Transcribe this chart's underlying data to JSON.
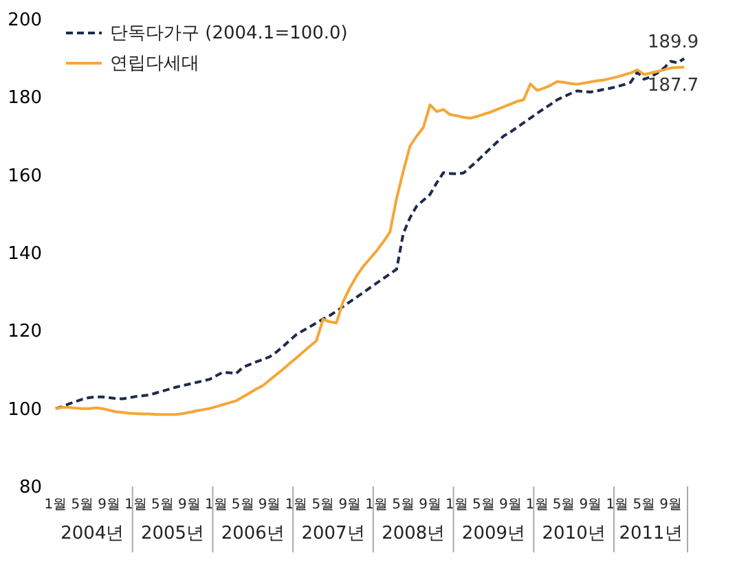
{
  "chart_data": {
    "type": "line",
    "categories": [
      "1월",
      null,
      null,
      null,
      "5월",
      null,
      null,
      null,
      "9월",
      null,
      null,
      null,
      "1월",
      null,
      null,
      null,
      "5월",
      null,
      null,
      null,
      "9월",
      null,
      null,
      null,
      "1월",
      null,
      null,
      null,
      "5월",
      null,
      null,
      null,
      "9월",
      null,
      null,
      null,
      "1월",
      null,
      null,
      null,
      "5월",
      null,
      null,
      null,
      "9월",
      null,
      null,
      null,
      "1월",
      null,
      null,
      null,
      "5월",
      null,
      null,
      null,
      "9월",
      null,
      null,
      null,
      "1월",
      null,
      null,
      null,
      "5월",
      null,
      null,
      null,
      "9월",
      null,
      null,
      null,
      "1월",
      null,
      null,
      null,
      "5월",
      null,
      null,
      null,
      "9월",
      null,
      null,
      null,
      "1월",
      null,
      null,
      null,
      "5월",
      null,
      null,
      null,
      "9월",
      null,
      null
    ],
    "series": [
      {
        "name": "단독다가구 (2004.1=100.0)",
        "color": "#1f2a4d",
        "line_style": "dashed",
        "values": [
          100,
          100.5,
          101.2,
          101.8,
          102.4,
          102.8,
          103,
          103,
          102.8,
          102.6,
          102.5,
          102.8,
          103.1,
          103.3,
          103.5,
          104,
          104.5,
          105,
          105.5,
          105.9,
          106.3,
          106.7,
          107.1,
          107.5,
          108.4,
          109.3,
          109.2,
          109,
          110.6,
          111.3,
          112,
          112.6,
          113.3,
          114.5,
          115.9,
          117.5,
          119,
          120,
          121,
          122,
          123,
          123.9,
          125,
          126.2,
          127.4,
          128.6,
          129.8,
          131,
          132.2,
          133.4,
          134.6,
          135.8,
          145,
          149,
          152,
          153.5,
          155,
          158,
          160.6,
          160.4,
          160.3,
          160.5,
          162,
          163.5,
          165.2,
          166.8,
          168.4,
          170,
          171,
          172.2,
          173.4,
          174.6,
          175.8,
          177,
          178.1,
          179.3,
          180.1,
          180.9,
          181.6,
          181.4,
          181.3,
          181.6,
          182,
          182.3,
          182.7,
          183.2,
          183.8,
          186.4,
          184.6,
          185.2,
          186.2,
          187.5,
          189.2,
          188.8,
          189.9
        ],
        "value_labels": [
          null,
          null,
          null,
          null,
          null,
          null,
          null,
          null,
          null,
          null,
          null,
          null,
          null,
          null,
          null,
          null,
          null,
          null,
          null,
          null,
          null,
          null,
          null,
          null,
          null,
          null,
          null,
          null,
          null,
          null,
          null,
          null,
          null,
          null,
          null,
          null,
          null,
          null,
          null,
          null,
          null,
          null,
          null,
          null,
          null,
          null,
          null,
          null,
          null,
          null,
          null,
          null,
          null,
          null,
          null,
          null,
          null,
          null,
          null,
          null,
          null,
          null,
          null,
          null,
          null,
          null,
          null,
          null,
          null,
          null,
          null,
          null,
          null,
          null,
          null,
          null,
          null,
          null,
          null,
          null,
          null,
          null,
          null,
          null,
          null,
          null,
          null,
          null,
          null,
          null,
          null,
          null,
          null,
          null,
          "189.9"
        ]
      },
      {
        "name": "연립다세대",
        "color": "#f5a638",
        "line_style": "solid",
        "values": [
          100,
          100.3,
          100.3,
          100.1,
          100,
          100,
          100.2,
          100,
          99.6,
          99.2,
          99,
          98.8,
          98.7,
          98.6,
          98.6,
          98.5,
          98.5,
          98.5,
          98.5,
          98.7,
          99,
          99.4,
          99.7,
          100,
          100.5,
          101,
          101.5,
          102,
          103,
          104,
          105,
          105.9,
          107.3,
          108.7,
          110.1,
          111.6,
          113,
          114.5,
          116,
          117.4,
          122.9,
          122.3,
          122,
          127.5,
          131,
          134,
          136.5,
          138.5,
          140.5,
          142.8,
          145.3,
          154,
          161,
          167.4,
          170,
          172.2,
          178,
          176.3,
          176.8,
          175.5,
          175.2,
          174.8,
          174.6,
          175,
          175.6,
          176.1,
          176.8,
          177.5,
          178.2,
          178.9,
          179.3,
          183.4,
          181.7,
          182.3,
          183,
          184,
          183.8,
          183.5,
          183.3,
          183.6,
          183.9,
          184.2,
          184.4,
          184.8,
          185.2,
          185.7,
          186.2,
          187,
          185.8,
          186.2,
          186.6,
          187,
          187.5,
          187.6,
          187.7
        ],
        "value_labels": [
          null,
          null,
          null,
          null,
          null,
          null,
          null,
          null,
          null,
          null,
          null,
          null,
          null,
          null,
          null,
          null,
          null,
          null,
          null,
          null,
          null,
          null,
          null,
          null,
          null,
          null,
          null,
          null,
          null,
          null,
          null,
          null,
          null,
          null,
          null,
          null,
          null,
          null,
          null,
          null,
          null,
          null,
          null,
          null,
          null,
          null,
          null,
          null,
          null,
          null,
          null,
          null,
          null,
          null,
          null,
          null,
          null,
          null,
          null,
          null,
          null,
          null,
          null,
          null,
          null,
          null,
          null,
          null,
          null,
          null,
          null,
          null,
          null,
          null,
          null,
          null,
          null,
          null,
          null,
          null,
          null,
          null,
          null,
          null,
          null,
          null,
          null,
          null,
          null,
          null,
          null,
          null,
          null,
          null,
          "187.7"
        ]
      }
    ],
    "annotations": [
      "2004년",
      "2005년",
      "2006년",
      "2007년",
      "2008년",
      "2009년",
      "2010년",
      "2011년"
    ],
    "ylim": [
      80,
      200
    ],
    "yticks": [
      80,
      100,
      120,
      140,
      160,
      180,
      200
    ],
    "legend": "top left",
    "grid": false,
    "marker": "none"
  }
}
